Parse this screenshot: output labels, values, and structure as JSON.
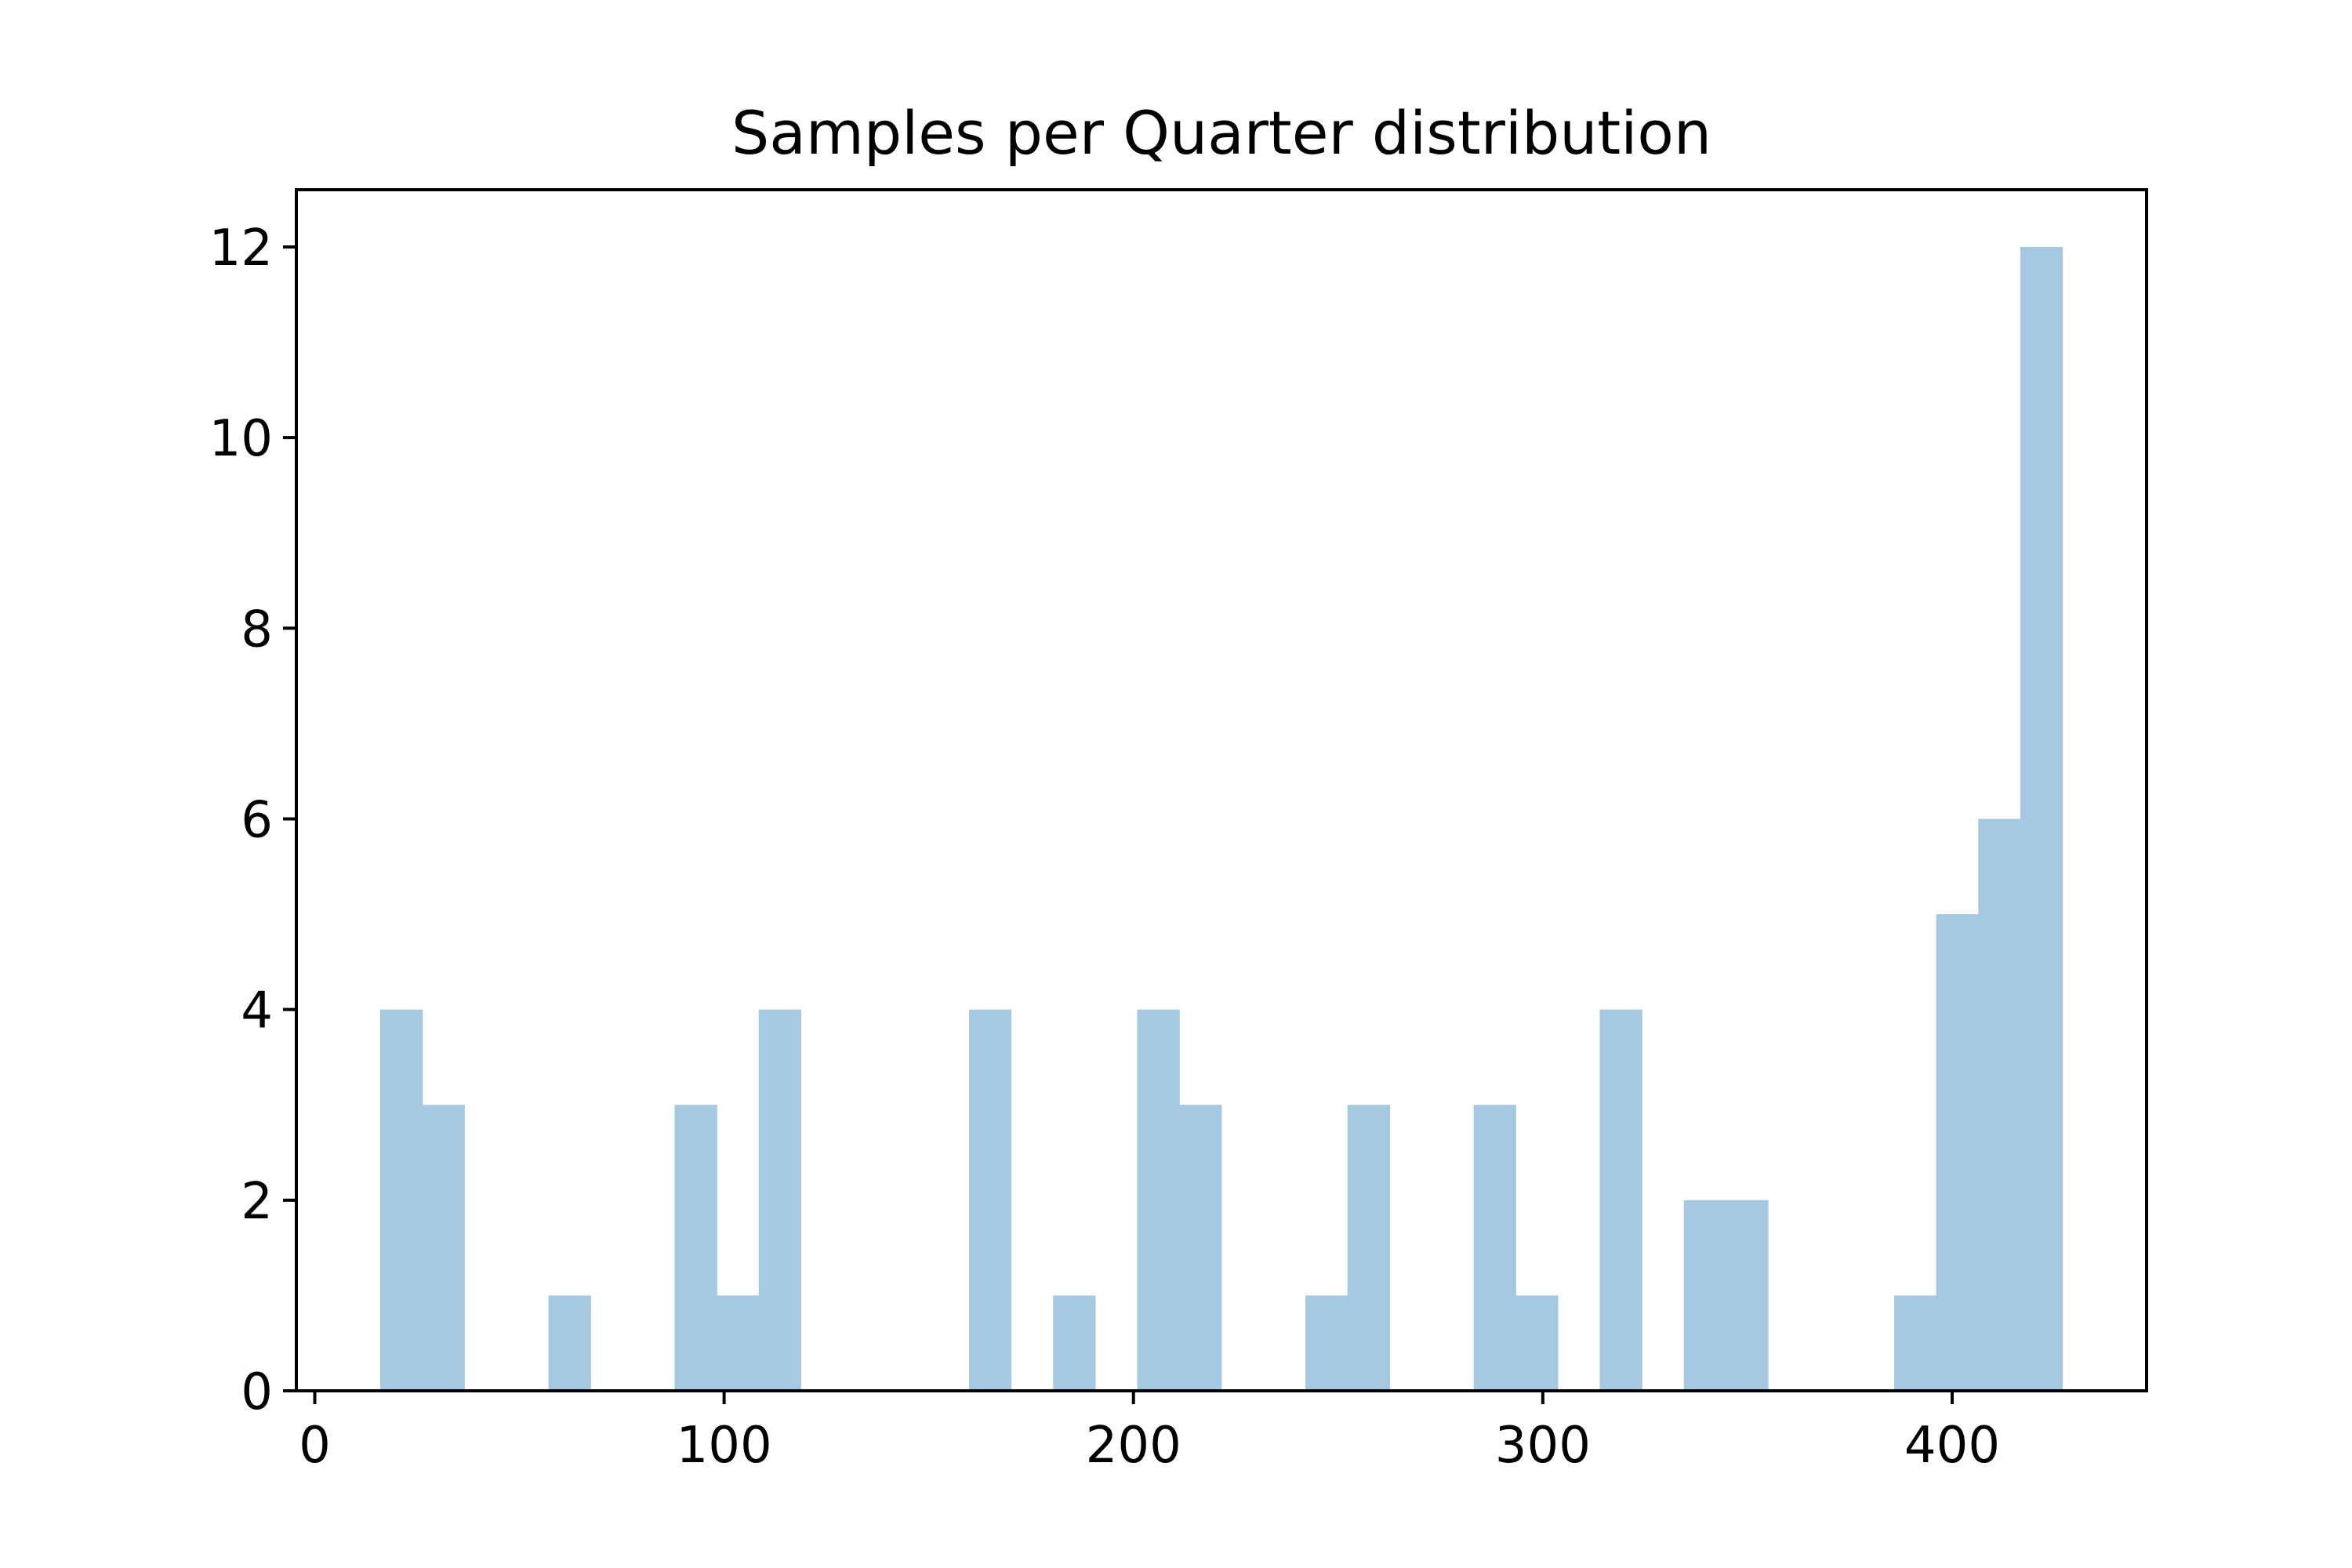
{
  "chart_data": {
    "type": "bar",
    "subtype": "histogram",
    "title": "Samples per Quarter distribution",
    "xlabel": "",
    "ylabel": "",
    "bin_edges": [
      16.0,
      26.273,
      36.546,
      46.819,
      57.092,
      67.365,
      77.638,
      87.911,
      98.184,
      108.457,
      118.73,
      129.003,
      139.276,
      149.549,
      159.822,
      170.095,
      180.368,
      190.641,
      200.914,
      211.187,
      221.46,
      231.733,
      242.006,
      252.279,
      262.552,
      272.825,
      283.098,
      293.371,
      303.644,
      313.917,
      324.19,
      334.463,
      344.736,
      355.009,
      365.282,
      375.555,
      385.828,
      396.101,
      406.374,
      416.647,
      426.92
    ],
    "counts": [
      4,
      3,
      0,
      0,
      1,
      0,
      0,
      3,
      1,
      4,
      0,
      0,
      0,
      0,
      4,
      0,
      1,
      0,
      4,
      3,
      0,
      0,
      1,
      3,
      0,
      0,
      3,
      1,
      0,
      4,
      0,
      2,
      2,
      0,
      0,
      0,
      1,
      5,
      6,
      12
    ],
    "xlim": [
      -4.5,
      447.5
    ],
    "ylim": [
      0,
      12.6
    ],
    "xticks": [
      0,
      100,
      200,
      300,
      400
    ],
    "xtick_labels": [
      "0",
      "100",
      "200",
      "300",
      "400"
    ],
    "yticks": [
      0,
      2,
      4,
      6,
      8,
      10,
      12
    ],
    "ytick_labels": [
      "0",
      "2",
      "4",
      "6",
      "8",
      "10",
      "12"
    ],
    "bar_color": "#a6c8e0",
    "grid": false,
    "legend": "none"
  }
}
